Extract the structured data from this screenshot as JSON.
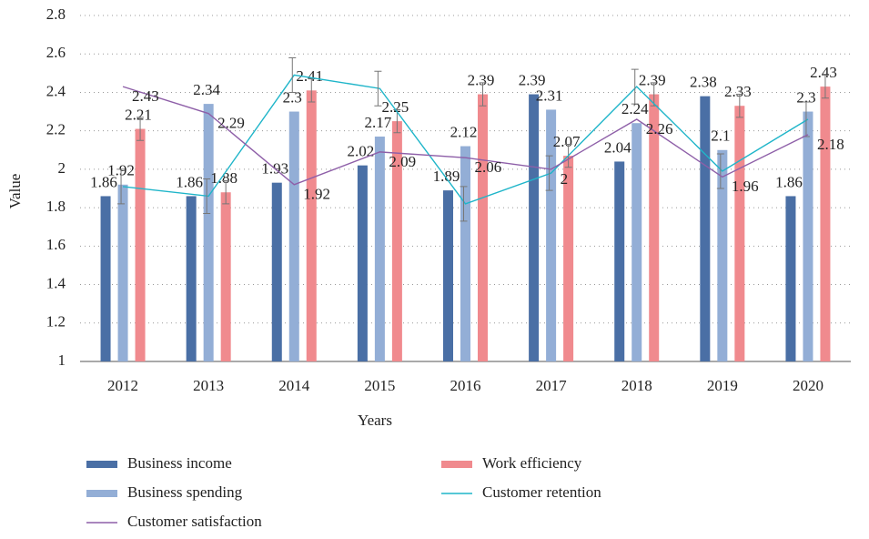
{
  "chart_data": {
    "type": "bar-line",
    "x_label": "Years",
    "y_label": "Value",
    "categories": [
      "2012",
      "2013",
      "2014",
      "2015",
      "2016",
      "2017",
      "2018",
      "2019",
      "2020"
    ],
    "series": [
      {
        "name": "Business income",
        "type": "bar",
        "color": "#4a6fa5",
        "values": [
          1.86,
          1.86,
          1.93,
          2.02,
          1.89,
          2.39,
          2.04,
          2.38,
          1.86
        ]
      },
      {
        "name": "Business spending",
        "type": "bar",
        "color": "#93aed6",
        "values": [
          1.92,
          2.34,
          2.3,
          2.17,
          2.12,
          2.31,
          2.24,
          2.1,
          2.3
        ]
      },
      {
        "name": "Work efficiency",
        "type": "bar",
        "color": "#f08a8e",
        "values": [
          2.21,
          1.88,
          2.41,
          2.25,
          2.39,
          2.07,
          2.39,
          2.33,
          2.43
        ],
        "errors": [
          0.06,
          0.06,
          0.06,
          0.06,
          0.06,
          0.06,
          0.06,
          0.06,
          0.06
        ]
      },
      {
        "name": "Customer retention",
        "type": "line",
        "color": "#1fb5c9",
        "values": [
          1.91,
          1.86,
          2.49,
          2.42,
          1.82,
          1.98,
          2.43,
          1.99,
          2.26
        ],
        "errors": [
          0.09,
          0.09,
          0.09,
          0.09,
          0.09,
          0.09,
          0.09,
          0.09,
          0.09
        ]
      },
      {
        "name": "Customer satisfaction",
        "type": "line",
        "color": "#8e5fa8",
        "values": [
          2.43,
          2.29,
          1.92,
          2.09,
          2.06,
          2,
          2.26,
          1.96,
          2.18
        ]
      }
    ],
    "ylim": [
      1,
      2.8
    ],
    "yticks": [
      1,
      {
        "value": 1.2,
        "label": "1.2"
      },
      {
        "value": 1.4,
        "label": "1.4"
      },
      {
        "value": 1.6,
        "label": "1.6"
      },
      {
        "value": 1.8,
        "label": "1.8"
      },
      2,
      {
        "value": 2.2,
        "label": "2.2"
      },
      {
        "value": 2.4,
        "label": "2.4"
      },
      {
        "value": 2.6,
        "label": "2.6"
      },
      {
        "value": 2.8,
        "label": "2.8"
      }
    ],
    "grid": true,
    "legend": "bottom"
  }
}
